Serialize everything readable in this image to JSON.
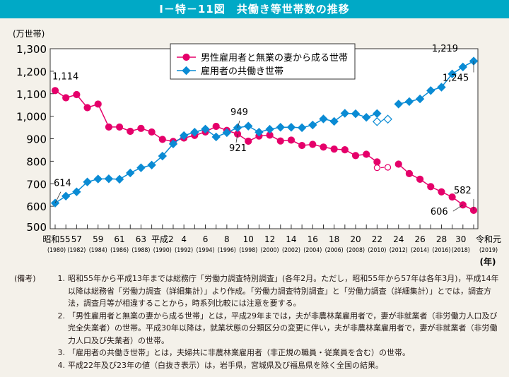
{
  "title": "Ⅰ－特－11図　共働き等世帯数の推移",
  "chart_data": {
    "type": "line",
    "ylabel": "(万世帯)",
    "xlabel": "(年)",
    "ylim": [
      500,
      1300
    ],
    "yticks": [
      "500",
      "600",
      "700",
      "800",
      "900",
      "1,000",
      "1,100",
      "1,200",
      "1,300"
    ],
    "yticks_values": [
      500,
      600,
      700,
      800,
      900,
      1000,
      1100,
      1200,
      1300
    ],
    "x": [
      1980,
      1981,
      1982,
      1983,
      1984,
      1985,
      1986,
      1987,
      1988,
      1989,
      1990,
      1991,
      1992,
      1993,
      1994,
      1995,
      1996,
      1997,
      1998,
      1999,
      2000,
      2001,
      2002,
      2003,
      2004,
      2005,
      2006,
      2007,
      2008,
      2009,
      2010,
      2011,
      2012,
      2013,
      2014,
      2015,
      2016,
      2017,
      2018,
      2019
    ],
    "xtick_labels": [
      {
        "year": 1980,
        "era": "昭和55",
        "ad": "(1980)"
      },
      {
        "year": 1982,
        "era": "57",
        "ad": "(1982)"
      },
      {
        "year": 1984,
        "era": "59",
        "ad": "(1984)"
      },
      {
        "year": 1986,
        "era": "61",
        "ad": "(1986)"
      },
      {
        "year": 1988,
        "era": "63",
        "ad": "(1988)"
      },
      {
        "year": 1990,
        "era": "平成2",
        "ad": "(1990)"
      },
      {
        "year": 1992,
        "era": "4",
        "ad": "(1992)"
      },
      {
        "year": 1994,
        "era": "6",
        "ad": "(1994)"
      },
      {
        "year": 1996,
        "era": "8",
        "ad": "(1996)"
      },
      {
        "year": 1998,
        "era": "10",
        "ad": "(1998)"
      },
      {
        "year": 2000,
        "era": "12",
        "ad": "(2000)"
      },
      {
        "year": 2002,
        "era": "14",
        "ad": "(2002)"
      },
      {
        "year": 2004,
        "era": "16",
        "ad": "(2004)"
      },
      {
        "year": 2006,
        "era": "18",
        "ad": "(2006)"
      },
      {
        "year": 2008,
        "era": "20",
        "ad": "(2008)"
      },
      {
        "year": 2010,
        "era": "22",
        "ad": "(2010)"
      },
      {
        "year": 2012,
        "era": "24",
        "ad": "(2012)"
      },
      {
        "year": 2014,
        "era": "26",
        "ad": "(2014)"
      },
      {
        "year": 2016,
        "era": "28",
        "ad": "(2016)"
      },
      {
        "year": 2018,
        "era": "30",
        "ad": "(2018)"
      },
      {
        "year": 2019,
        "era": "令和元",
        "ad": "(2019)"
      }
    ],
    "legend_position": "top-center",
    "series": [
      {
        "name": "男性雇用者と無業の妻から成る世帯",
        "color": "#e5006a",
        "marker": "circle",
        "values": [
          1114,
          1082,
          1096,
          1038,
          1054,
          952,
          952,
          933,
          946,
          930,
          897,
          888,
          903,
          915,
          930,
          955,
          937,
          921,
          889,
          912,
          916,
          890,
          894,
          870,
          875,
          863,
          854,
          851,
          825,
          831,
          797,
          null,
          787,
          745,
          720,
          687,
          664,
          641,
          606,
          582
        ],
        "hollow": {
          "x": [
            2010,
            2011
          ],
          "values": [
            771,
            773
          ]
        }
      },
      {
        "name": "雇用者の共働き世帯",
        "color": "#0a8bd4",
        "marker": "diamond",
        "values": [
          614,
          645,
          664,
          708,
          721,
          722,
          720,
          748,
          771,
          783,
          823,
          877,
          914,
          929,
          943,
          908,
          927,
          949,
          956,
          929,
          942,
          951,
          951,
          949,
          961,
          988,
          977,
          1013,
          1011,
          995,
          1012,
          null,
          1054,
          1065,
          1077,
          1114,
          1129,
          1188,
          1219,
          1245
        ],
        "hollow": {
          "x": [
            2010,
            2011
          ],
          "values": [
            976,
            987
          ]
        }
      }
    ],
    "annotations": [
      {
        "text": "1,114",
        "series": 0,
        "year": 1980
      },
      {
        "text": "614",
        "series": 1,
        "year": 1980
      },
      {
        "text": "949",
        "series": 1,
        "year": 1997
      },
      {
        "text": "921",
        "series": 0,
        "year": 1997
      },
      {
        "text": "1,219",
        "series": 1,
        "year": 2018
      },
      {
        "text": "1,245",
        "series": 1,
        "year": 2019
      },
      {
        "text": "606",
        "series": 0,
        "year": 2018
      },
      {
        "text": "582",
        "series": 0,
        "year": 2019
      }
    ]
  },
  "notes": {
    "label": "(備考)",
    "items": [
      {
        "num": "1.",
        "text": "昭和55年から平成13年までは総務庁「労働力調査特別調査」(各年2月。ただし，昭和55年から57年は各年3月)，平成14年以降は総務省「労働力調査（詳細集計）」より作成。「労働力調査特別調査」と「労働力調査（詳細集計）」とでは，調査方法，調査月等が相違することから，時系列比較には注意を要する。"
      },
      {
        "num": "2.",
        "text": "「男性雇用者と無業の妻から成る世帯」とは，平成29年までは，夫が非農林業雇用者で，妻が非就業者（非労働力人口及び完全失業者）の世帯。平成30年以降は，就業状態の分類区分の変更に伴い，夫が非農林業雇用者で，妻が非就業者（非労働力人口及び失業者）の世帯。"
      },
      {
        "num": "3.",
        "text": "「雇用者の共働き世帯」とは，夫婦共に非農林業雇用者（非正規の職員・従業員を含む）の世帯。"
      },
      {
        "num": "4.",
        "text": "平成22年及び23年の値（白抜き表示）は，岩手県，宮城県及び福島県を除く全国の結果。"
      }
    ]
  }
}
